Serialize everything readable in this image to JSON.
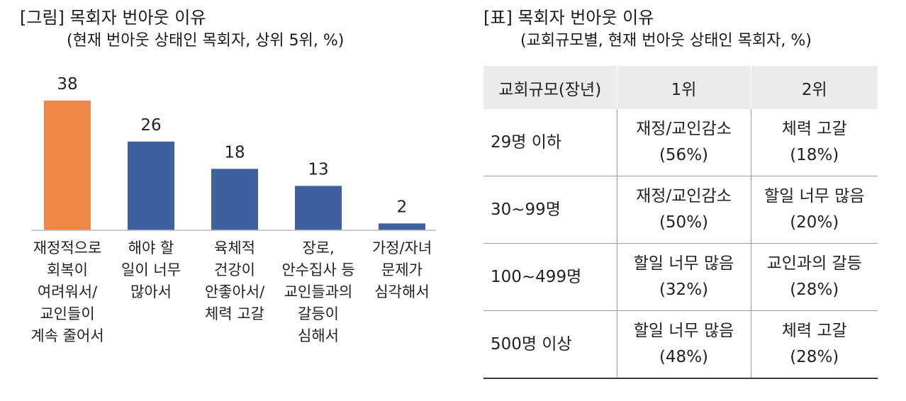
{
  "figure": {
    "title": "[그림] 목회자 번아웃 이유",
    "subtitle": "(현재 번아웃 상태인 목회자, 상위 5위, %)"
  },
  "chart_data": {
    "type": "bar",
    "title": "[그림] 목회자 번아웃 이유",
    "subtitle": "(현재 번아웃 상태인 목회자, 상위 5위, %)",
    "xlabel": "",
    "ylabel": "",
    "ylim": [
      0,
      38
    ],
    "grid": false,
    "legend": "none",
    "categories": [
      [
        "재정적으로",
        "회복이",
        "여려워서/",
        "교인들이",
        "계속 줄어서"
      ],
      [
        "해야 할",
        "일이 너무",
        "많아서"
      ],
      [
        "육체적",
        "건강이",
        "안좋아서/",
        "체력 고갈"
      ],
      [
        "장로,",
        "안수집사 등",
        "교인들과의",
        "갈등이",
        "심해서"
      ],
      [
        "가정/자녀",
        "문제가",
        "심각해서"
      ]
    ],
    "values": [
      38,
      26,
      18,
      13,
      2
    ],
    "bar_colors": [
      "#ef8847",
      "#3f5f9e",
      "#3f5f9e",
      "#3f5f9e",
      "#3f5f9e"
    ],
    "axis_color": "#bbbbbb"
  },
  "table": {
    "title": "[표] 목회자 번아웃 이유",
    "subtitle": "(교회규모별, 현재 번아웃 상태인 목회자, %)",
    "headers": [
      "교회규모(장년)",
      "1위",
      "2위"
    ],
    "rows": [
      {
        "size": "29명 이하",
        "first_reason": "재정/교인감소",
        "first_pct": "(56%)",
        "second_reason": "체력 고갈",
        "second_pct": "(18%)"
      },
      {
        "size": "30~99명",
        "first_reason": "재정/교인감소",
        "first_pct": "(50%)",
        "second_reason": "할일 너무 많음",
        "second_pct": "(20%)"
      },
      {
        "size": "100~499명",
        "first_reason": "할일 너무 많음",
        "first_pct": "(32%)",
        "second_reason": "교인과의 갈등",
        "second_pct": "(28%)"
      },
      {
        "size": "500명 이상",
        "first_reason": "할일 너무 많음",
        "first_pct": "(48%)",
        "second_reason": "체력 고갈",
        "second_pct": "(28%)"
      }
    ]
  }
}
